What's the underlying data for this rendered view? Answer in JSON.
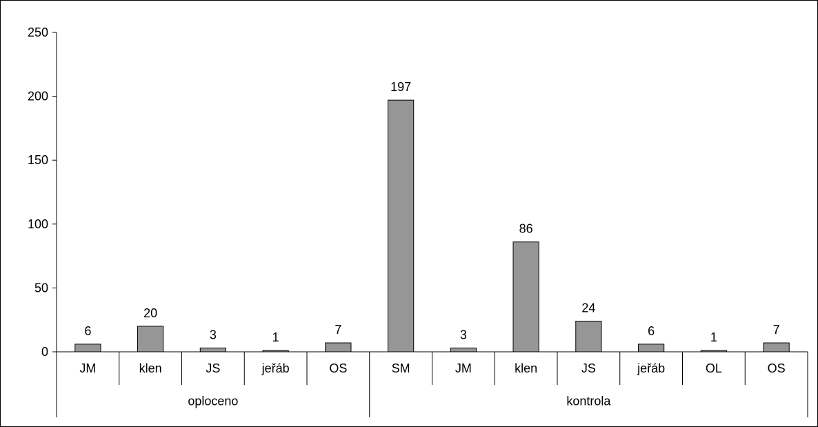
{
  "chart_data": {
    "type": "bar",
    "title": "",
    "xlabel": "",
    "ylabel": "",
    "ylim": [
      0,
      250
    ],
    "yticks": [
      0,
      50,
      100,
      150,
      200,
      250
    ],
    "grid": false,
    "legend": "none",
    "bar_color": "#969696",
    "groups": [
      {
        "label": "oploceno",
        "categories": [
          "JM",
          "klen",
          "JS",
          "jeřáb",
          "OS"
        ],
        "values": [
          6,
          20,
          3,
          1,
          7
        ]
      },
      {
        "label": "kontrola",
        "categories": [
          "SM",
          "JM",
          "klen",
          "JS",
          "jeřáb",
          "OL",
          "OS"
        ],
        "values": [
          197,
          3,
          86,
          24,
          6,
          1,
          7
        ]
      }
    ]
  }
}
